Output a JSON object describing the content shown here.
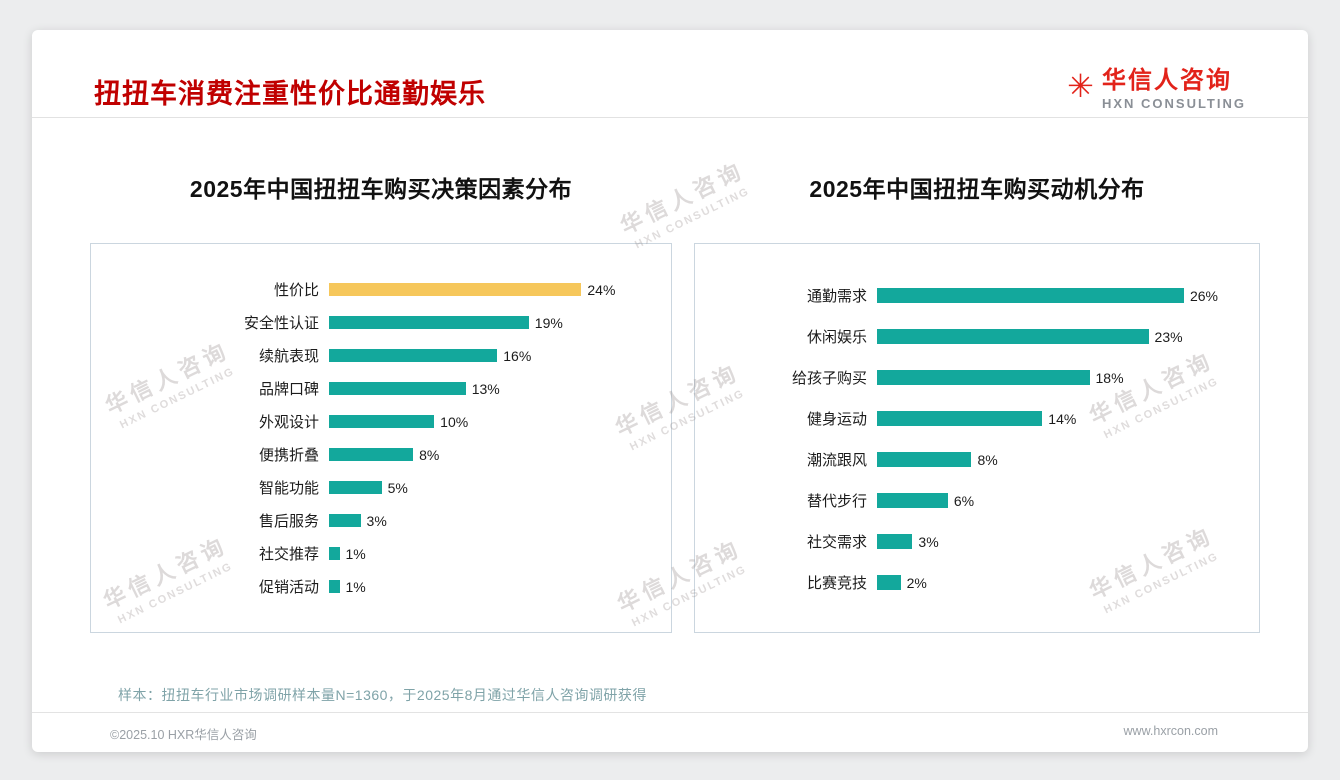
{
  "page": {
    "title": "扭扭车消费注重性价比通勤娱乐",
    "logo": {
      "icon": "✳",
      "cn": "华信人咨询",
      "en": "HXN CONSULTING"
    },
    "watermark": {
      "cn": "华信人咨询",
      "en": "HXN CONSULTING"
    },
    "sample_note": "样本：扭扭车行业市场调研样本量N=1360，于2025年8月通过华信人咨询调研获得",
    "footer": {
      "copyright": "©2025.10 HXR华信人咨询",
      "website": "www.hxrcon.com"
    }
  },
  "colors": {
    "title_red": "#C00000",
    "logo_red": "#E2231A",
    "teal": "#13A89C",
    "gold": "#F6C75B"
  },
  "chart_data": [
    {
      "type": "bar",
      "orientation": "horizontal",
      "title": "2025年中国扭扭车购买决策因素分布",
      "categories": [
        "性价比",
        "安全性认证",
        "续航表现",
        "品牌口碑",
        "外观设计",
        "便携折叠",
        "智能功能",
        "售后服务",
        "社交推荐",
        "促销活动"
      ],
      "values": [
        24,
        19,
        16,
        13,
        10,
        8,
        5,
        3,
        1,
        1
      ],
      "value_suffix": "%",
      "xlim": [
        0,
        31
      ],
      "bar_color": "#13A89C",
      "highlight": {
        "index": 0,
        "color": "#F6C75B"
      },
      "grid": false,
      "legend": false
    },
    {
      "type": "bar",
      "orientation": "horizontal",
      "title": "2025年中国扭扭车购买动机分布",
      "categories": [
        "通勤需求",
        "休闲娱乐",
        "给孩子购买",
        "健身运动",
        "潮流跟风",
        "替代步行",
        "社交需求",
        "比赛竞技"
      ],
      "values": [
        26,
        23,
        18,
        14,
        8,
        6,
        3,
        2
      ],
      "value_suffix": "%",
      "xlim": [
        0,
        31
      ],
      "bar_color": "#13A89C",
      "grid": false,
      "legend": false
    }
  ]
}
